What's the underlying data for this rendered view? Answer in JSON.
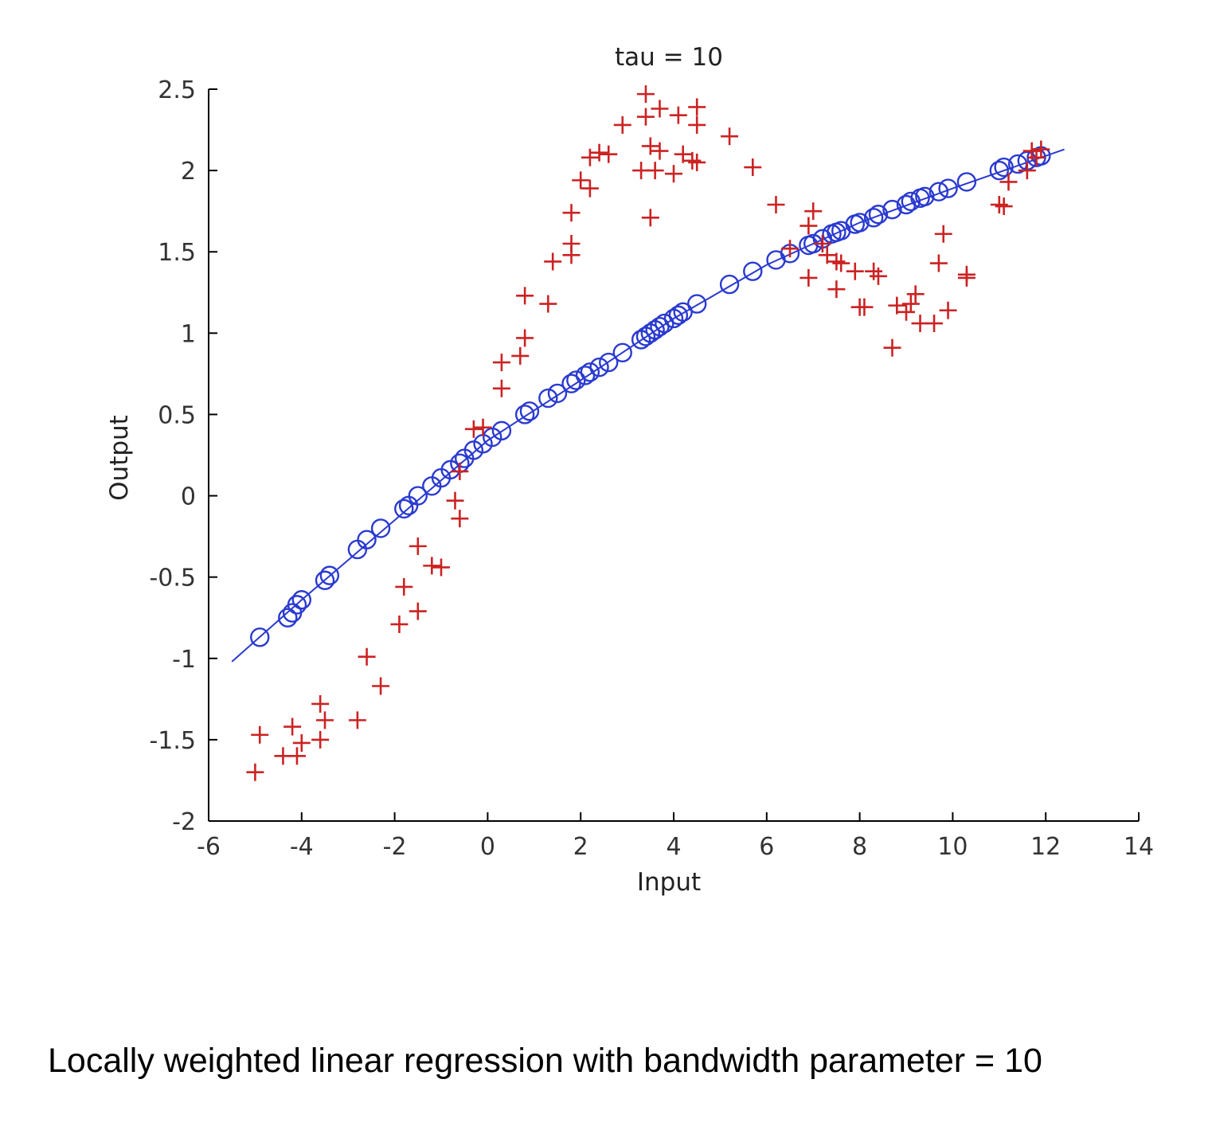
{
  "caption": "Locally weighted linear regression with bandwidth parameter = 10",
  "chart_data": {
    "type": "scatter",
    "title": "tau = 10",
    "xlabel": "Input",
    "ylabel": "Output",
    "xlim": [
      -6,
      14
    ],
    "ylim": [
      -2,
      2.5
    ],
    "xticks": [
      "-6",
      "-4",
      "-2",
      "0",
      "2",
      "4",
      "6",
      "8",
      "10",
      "12",
      "14"
    ],
    "yticks": [
      "-2",
      "-1.5",
      "-1",
      "-0.5",
      "0",
      "0.5",
      "1",
      "1.5",
      "2",
      "2.5"
    ],
    "grid": false,
    "legend": "none",
    "colors": {
      "data": "#cc2222",
      "prediction": "#2a3ad0",
      "axis": "#000000"
    },
    "series": [
      {
        "marker": "plus",
        "color": "#cc2222",
        "points": [
          [
            -5.0,
            -1.7
          ],
          [
            -4.9,
            -1.47
          ],
          [
            -4.4,
            -1.6
          ],
          [
            -4.2,
            -1.42
          ],
          [
            -4.1,
            -1.6
          ],
          [
            -4.0,
            -1.52
          ],
          [
            -3.6,
            -1.5
          ],
          [
            -3.6,
            -1.28
          ],
          [
            -3.5,
            -1.38
          ],
          [
            -2.8,
            -1.38
          ],
          [
            -2.6,
            -0.99
          ],
          [
            -2.3,
            -1.17
          ],
          [
            -1.9,
            -0.79
          ],
          [
            -1.8,
            -0.56
          ],
          [
            -1.5,
            -0.71
          ],
          [
            -1.5,
            -0.31
          ],
          [
            -1.2,
            -0.43
          ],
          [
            -1.0,
            -0.44
          ],
          [
            -0.7,
            -0.03
          ],
          [
            -0.6,
            -0.14
          ],
          [
            -0.6,
            0.15
          ],
          [
            -0.3,
            0.41
          ],
          [
            -0.1,
            0.42
          ],
          [
            0.3,
            0.66
          ],
          [
            0.3,
            0.82
          ],
          [
            0.7,
            0.86
          ],
          [
            0.8,
            0.97
          ],
          [
            0.8,
            1.23
          ],
          [
            1.3,
            1.18
          ],
          [
            1.4,
            1.44
          ],
          [
            1.8,
            1.48
          ],
          [
            1.8,
            1.55
          ],
          [
            1.8,
            1.74
          ],
          [
            2.0,
            1.94
          ],
          [
            2.2,
            1.89
          ],
          [
            2.2,
            2.08
          ],
          [
            2.4,
            2.11
          ],
          [
            2.6,
            2.1
          ],
          [
            2.9,
            2.28
          ],
          [
            3.3,
            2.0
          ],
          [
            3.4,
            2.47
          ],
          [
            3.4,
            2.33
          ],
          [
            3.5,
            2.15
          ],
          [
            3.5,
            1.71
          ],
          [
            3.6,
            2.0
          ],
          [
            3.7,
            2.38
          ],
          [
            3.7,
            2.12
          ],
          [
            4.0,
            1.98
          ],
          [
            4.1,
            2.34
          ],
          [
            4.2,
            2.1
          ],
          [
            4.4,
            2.06
          ],
          [
            4.5,
            2.28
          ],
          [
            4.5,
            2.39
          ],
          [
            4.5,
            2.05
          ],
          [
            5.2,
            2.21
          ],
          [
            5.7,
            2.02
          ],
          [
            6.2,
            1.79
          ],
          [
            6.5,
            1.52
          ],
          [
            6.9,
            1.66
          ],
          [
            6.9,
            1.34
          ],
          [
            7.0,
            1.75
          ],
          [
            7.2,
            1.55
          ],
          [
            7.3,
            1.48
          ],
          [
            7.5,
            1.44
          ],
          [
            7.5,
            1.27
          ],
          [
            7.6,
            1.43
          ],
          [
            7.9,
            1.38
          ],
          [
            8.0,
            1.16
          ],
          [
            8.1,
            1.16
          ],
          [
            8.3,
            1.38
          ],
          [
            8.4,
            1.35
          ],
          [
            8.7,
            0.91
          ],
          [
            8.8,
            1.17
          ],
          [
            9.0,
            1.13
          ],
          [
            9.1,
            1.18
          ],
          [
            9.2,
            1.24
          ],
          [
            9.3,
            1.06
          ],
          [
            9.6,
            1.06
          ],
          [
            9.7,
            1.43
          ],
          [
            9.8,
            1.61
          ],
          [
            9.9,
            1.14
          ],
          [
            10.3,
            1.36
          ],
          [
            10.3,
            1.34
          ],
          [
            11.0,
            1.79
          ],
          [
            11.1,
            1.78
          ],
          [
            11.2,
            1.93
          ],
          [
            11.6,
            2.0
          ],
          [
            11.7,
            2.12
          ],
          [
            11.8,
            2.08
          ],
          [
            11.9,
            2.13
          ]
        ]
      },
      {
        "marker": "circle",
        "color": "#2a3ad0",
        "points": [
          [
            -4.9,
            -0.87
          ],
          [
            -4.3,
            -0.75
          ],
          [
            -4.2,
            -0.72
          ],
          [
            -4.1,
            -0.67
          ],
          [
            -4.0,
            -0.64
          ],
          [
            -3.5,
            -0.52
          ],
          [
            -3.4,
            -0.49
          ],
          [
            -2.8,
            -0.33
          ],
          [
            -2.6,
            -0.27
          ],
          [
            -2.3,
            -0.2
          ],
          [
            -1.8,
            -0.08
          ],
          [
            -1.7,
            -0.06
          ],
          [
            -1.5,
            0.0
          ],
          [
            -1.2,
            0.06
          ],
          [
            -1.0,
            0.11
          ],
          [
            -0.8,
            0.16
          ],
          [
            -0.6,
            0.2
          ],
          [
            -0.5,
            0.23
          ],
          [
            -0.3,
            0.28
          ],
          [
            -0.1,
            0.32
          ],
          [
            0.1,
            0.36
          ],
          [
            0.3,
            0.4
          ],
          [
            0.8,
            0.5
          ],
          [
            0.9,
            0.52
          ],
          [
            1.3,
            0.6
          ],
          [
            1.5,
            0.63
          ],
          [
            1.8,
            0.69
          ],
          [
            1.9,
            0.71
          ],
          [
            2.1,
            0.74
          ],
          [
            2.2,
            0.76
          ],
          [
            2.4,
            0.79
          ],
          [
            2.6,
            0.82
          ],
          [
            2.9,
            0.88
          ],
          [
            3.3,
            0.96
          ],
          [
            3.4,
            0.98
          ],
          [
            3.5,
            1.0
          ],
          [
            3.6,
            1.02
          ],
          [
            3.7,
            1.04
          ],
          [
            3.8,
            1.06
          ],
          [
            4.0,
            1.09
          ],
          [
            4.1,
            1.11
          ],
          [
            4.2,
            1.13
          ],
          [
            4.5,
            1.18
          ],
          [
            5.2,
            1.3
          ],
          [
            5.7,
            1.38
          ],
          [
            6.2,
            1.45
          ],
          [
            6.5,
            1.49
          ],
          [
            6.9,
            1.54
          ],
          [
            7.0,
            1.55
          ],
          [
            7.2,
            1.58
          ],
          [
            7.4,
            1.61
          ],
          [
            7.5,
            1.62
          ],
          [
            7.6,
            1.63
          ],
          [
            7.9,
            1.67
          ],
          [
            8.0,
            1.68
          ],
          [
            8.3,
            1.71
          ],
          [
            8.4,
            1.73
          ],
          [
            8.7,
            1.76
          ],
          [
            9.0,
            1.79
          ],
          [
            9.1,
            1.81
          ],
          [
            9.3,
            1.83
          ],
          [
            9.4,
            1.84
          ],
          [
            9.7,
            1.87
          ],
          [
            9.9,
            1.89
          ],
          [
            10.3,
            1.93
          ],
          [
            11.0,
            2.0
          ],
          [
            11.1,
            2.02
          ],
          [
            11.4,
            2.04
          ],
          [
            11.6,
            2.06
          ],
          [
            11.8,
            2.08
          ],
          [
            11.9,
            2.09
          ]
        ]
      },
      {
        "marker": "line",
        "color": "#2a3ad0",
        "points": [
          [
            -5.5,
            -1.02
          ],
          [
            -4.0,
            -0.64
          ],
          [
            -2.0,
            -0.15
          ],
          [
            0.0,
            0.34
          ],
          [
            2.0,
            0.71
          ],
          [
            4.0,
            1.09
          ],
          [
            6.0,
            1.42
          ],
          [
            8.0,
            1.68
          ],
          [
            10.0,
            1.89
          ],
          [
            12.4,
            2.13
          ]
        ]
      }
    ]
  }
}
